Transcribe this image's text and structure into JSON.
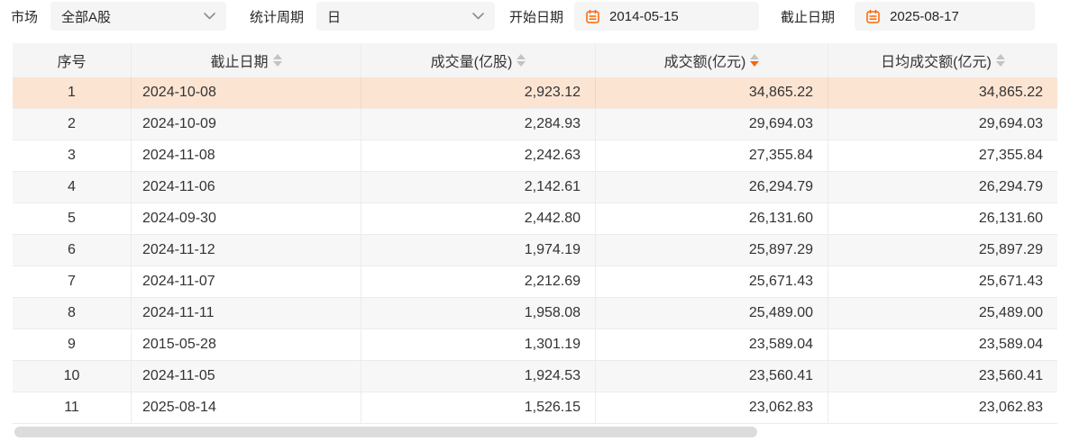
{
  "filters": {
    "market": {
      "label": "市场",
      "value": "全部A股"
    },
    "period": {
      "label": "统计周期",
      "value": "日"
    },
    "start_date": {
      "label": "开始日期",
      "value": "2014-05-15"
    },
    "end_date": {
      "label": "截止日期",
      "value": "2025-08-17"
    }
  },
  "table": {
    "columns": [
      {
        "key": "index",
        "label": "序号",
        "sortable": false,
        "sort": "none"
      },
      {
        "key": "end-date",
        "label": "截止日期",
        "sortable": true,
        "sort": "none"
      },
      {
        "key": "volume",
        "label": "成交量(亿股)",
        "sortable": true,
        "sort": "none"
      },
      {
        "key": "amount",
        "label": "成交额(亿元)",
        "sortable": true,
        "sort": "desc"
      },
      {
        "key": "avg-amount",
        "label": "日均成交额(亿元)",
        "sortable": true,
        "sort": "none"
      }
    ],
    "highlighted_row_index": 0,
    "rows": [
      [
        "1",
        "2024-10-08",
        "2,923.12",
        "34,865.22",
        "34,865.22"
      ],
      [
        "2",
        "2024-10-09",
        "2,284.93",
        "29,694.03",
        "29,694.03"
      ],
      [
        "3",
        "2024-11-08",
        "2,242.63",
        "27,355.84",
        "27,355.84"
      ],
      [
        "4",
        "2024-11-06",
        "2,142.61",
        "26,294.79",
        "26,294.79"
      ],
      [
        "5",
        "2024-09-30",
        "2,442.80",
        "26,131.60",
        "26,131.60"
      ],
      [
        "6",
        "2024-11-12",
        "1,974.19",
        "25,897.29",
        "25,897.29"
      ],
      [
        "7",
        "2024-11-07",
        "2,212.69",
        "25,671.43",
        "25,671.43"
      ],
      [
        "8",
        "2024-11-11",
        "1,958.08",
        "25,489.00",
        "25,489.00"
      ],
      [
        "9",
        "2015-05-28",
        "1,301.19",
        "23,589.04",
        "23,589.04"
      ],
      [
        "10",
        "2024-11-05",
        "1,924.53",
        "23,560.41",
        "23,560.41"
      ],
      [
        "11",
        "2025-08-14",
        "1,526.15",
        "23,062.83",
        "23,062.83"
      ]
    ]
  },
  "colors": {
    "accent_orange": "#ff6600",
    "highlight_row_bg": "#fce4d3",
    "stripe_row_bg": "#f7f7f7",
    "header_bg": "#f5f5f6",
    "field_bg": "#f5f5f5",
    "row_border": "#ebebeb",
    "text": "#333333",
    "sort_caret_gray": "#c3c3c3",
    "scrollbar_thumb": "#dcdcdc"
  }
}
